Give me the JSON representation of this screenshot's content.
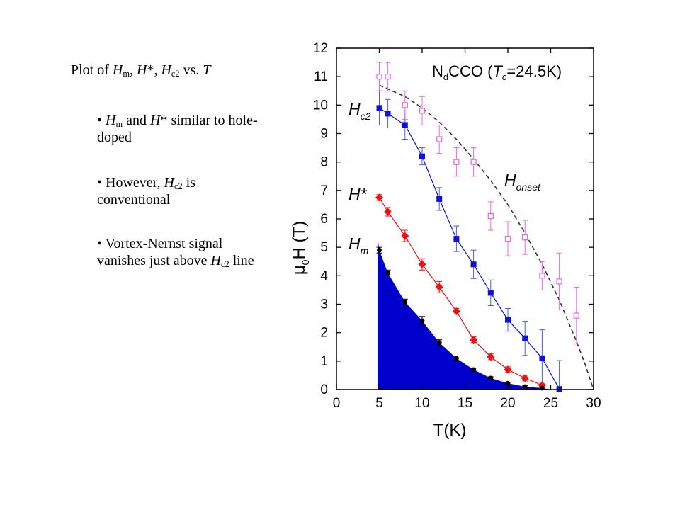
{
  "slide": {
    "title": {
      "prefix": "Plot of ",
      "t1": "H",
      "t1_sub": "m",
      "sep1": ", ",
      "t2": "H",
      "t2_sup": "*",
      "sep2": ", ",
      "t3": "H",
      "t3_sub": "c2",
      "mid": " vs. ",
      "t4": "T"
    },
    "bullets": [
      {
        "marker": "• ",
        "v1": "H",
        "v1_sub": "m",
        "a": " and ",
        "v2": "H",
        "v2_sup": "*",
        "b": " similar to hole-doped"
      },
      {
        "marker": "• ",
        "a": "However, ",
        "v1": "H",
        "v1_sub": "c2",
        "b": " is conventional"
      },
      {
        "marker": "• ",
        "a": "Vortex-Nernst signal vanishes just above ",
        "v1": "H",
        "v1_sub": "c2",
        "b": " line"
      }
    ]
  },
  "chart_data": {
    "type": "scatter",
    "title": {
      "prefix": "N",
      "sub": "d",
      "rest": "CCO (",
      "t": "T",
      "t_sub": "c",
      "value": "=24.5K)"
    },
    "xlabel": "T(K)",
    "ylabel": {
      "mu": "μ",
      "mu_sub": "0",
      "rest": "H (T)"
    },
    "xlim": [
      0,
      30
    ],
    "ylim": [
      0,
      12
    ],
    "xticks": [
      0,
      5,
      10,
      15,
      20,
      25,
      30
    ],
    "yticks": [
      0,
      1,
      2,
      3,
      4,
      5,
      6,
      7,
      8,
      9,
      10,
      11,
      12
    ],
    "grid": false,
    "series": [
      {
        "name": "Hc2",
        "label_main": "H",
        "label_sub": "c2",
        "marker": "filled-square",
        "color": "#1010dd",
        "line": true,
        "x": [
          5,
          6,
          8,
          10,
          12,
          14,
          16,
          18,
          20,
          22,
          24,
          26
        ],
        "y": [
          9.9,
          9.7,
          9.3,
          8.2,
          6.7,
          5.3,
          4.4,
          3.4,
          2.45,
          1.8,
          1.1,
          0.02
        ],
        "err": [
          0.6,
          0.5,
          0.5,
          0.3,
          0.4,
          0.45,
          0.5,
          0.45,
          0.4,
          0.6,
          1.0,
          1.0
        ]
      },
      {
        "name": "H*",
        "label_main": "H",
        "label_sup": "*",
        "marker": "filled-diamond",
        "color": "#ee1111",
        "line": true,
        "x": [
          5,
          6,
          8,
          10,
          12,
          14,
          16,
          18,
          20,
          22,
          24
        ],
        "y": [
          6.75,
          6.25,
          5.4,
          4.4,
          3.6,
          2.75,
          1.75,
          1.15,
          0.7,
          0.4,
          0.15
        ],
        "err": [
          0.1,
          0.15,
          0.2,
          0.2,
          0.2,
          0.1,
          0.1,
          0.1,
          0.1,
          0.1,
          0.05
        ]
      },
      {
        "name": "Hm",
        "label_main": "H",
        "label_sub": "m",
        "marker": "filled-circle",
        "color": "#000000",
        "line": false,
        "fill_color": "#0000cc",
        "x": [
          5,
          6,
          8,
          10,
          12,
          14,
          16,
          18,
          20,
          22,
          24
        ],
        "y": [
          4.9,
          4.1,
          3.08,
          2.42,
          1.65,
          1.1,
          0.7,
          0.4,
          0.22,
          0.1,
          0.05
        ],
        "fill_x": [
          4.8,
          5,
          6,
          8,
          10,
          12,
          14,
          16,
          18,
          20,
          22,
          24,
          25
        ],
        "fill_y": [
          5.35,
          4.9,
          4.1,
          3.08,
          2.42,
          1.65,
          1.1,
          0.7,
          0.4,
          0.22,
          0.1,
          0.05,
          0
        ],
        "err": [
          0.1,
          0.1,
          0.1,
          0.15,
          0.1,
          0.08,
          0.05,
          0.05,
          0.04,
          0.04,
          0.03
        ]
      },
      {
        "name": "Honset",
        "label_main": "H",
        "label_sub": "onset",
        "marker": "open-square",
        "color": "#ee66ee",
        "line": false,
        "x": [
          5,
          6,
          8,
          10,
          12,
          14,
          16,
          18,
          20,
          22,
          24,
          26,
          28
        ],
        "y": [
          11.0,
          11.0,
          10.0,
          9.8,
          8.8,
          8.0,
          8.0,
          6.1,
          5.3,
          5.35,
          4.0,
          3.8,
          2.6
        ],
        "err": [
          0.5,
          0.5,
          0.5,
          0.5,
          0.5,
          0.5,
          0.5,
          0.5,
          0.6,
          0.6,
          0.5,
          1.0,
          1.0
        ]
      },
      {
        "name": "Honset curve",
        "line_style": "dashed",
        "color": "#333333",
        "x": [
          5,
          8,
          10,
          12,
          14,
          16,
          18,
          20,
          22,
          24,
          26,
          28,
          29,
          30
        ],
        "y": [
          10.7,
          10.3,
          9.9,
          9.4,
          8.8,
          8.1,
          7.35,
          6.5,
          5.5,
          4.4,
          3.15,
          1.7,
          0.9,
          0
        ]
      }
    ]
  }
}
